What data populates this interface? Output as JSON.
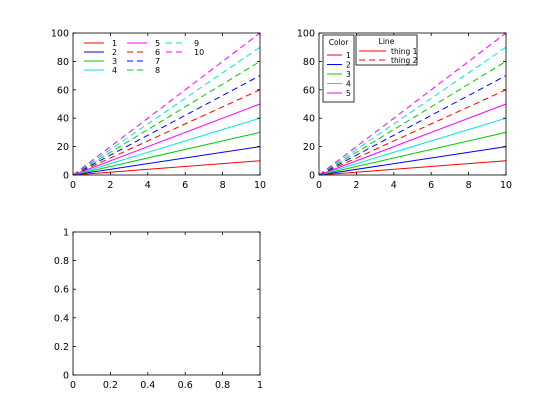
{
  "chart_data": [
    {
      "type": "line",
      "panel": "top-left",
      "xlim": [
        0,
        10
      ],
      "ylim": [
        0,
        100
      ],
      "xticks": [
        0,
        2,
        4,
        6,
        8,
        10
      ],
      "yticks": [
        0,
        20,
        40,
        60,
        80,
        100
      ],
      "xtick_labels": [
        "0",
        "2",
        "4",
        "6",
        "8",
        "10"
      ],
      "ytick_labels": [
        "0",
        "20",
        "40",
        "60",
        "80",
        "100"
      ],
      "grid": false,
      "legend_placement": "top-left",
      "legend_columns": 3,
      "series": [
        {
          "name": "1",
          "x": [
            0,
            10
          ],
          "y": [
            0,
            10
          ],
          "color": "#ff0000",
          "dash": "solid"
        },
        {
          "name": "2",
          "x": [
            0,
            10
          ],
          "y": [
            0,
            20
          ],
          "color": "#0000ff",
          "dash": "solid"
        },
        {
          "name": "3",
          "x": [
            0,
            10
          ],
          "y": [
            0,
            30
          ],
          "color": "#00cc00",
          "dash": "solid"
        },
        {
          "name": "4",
          "x": [
            0,
            10
          ],
          "y": [
            0,
            40
          ],
          "color": "#00e5e5",
          "dash": "solid"
        },
        {
          "name": "5",
          "x": [
            0,
            10
          ],
          "y": [
            0,
            50
          ],
          "color": "#ff00ff",
          "dash": "solid"
        },
        {
          "name": "6",
          "x": [
            0,
            10
          ],
          "y": [
            0,
            60
          ],
          "color": "#ff0000",
          "dash": "dashed"
        },
        {
          "name": "7",
          "x": [
            0,
            10
          ],
          "y": [
            0,
            70
          ],
          "color": "#0000ff",
          "dash": "dashed"
        },
        {
          "name": "8",
          "x": [
            0,
            10
          ],
          "y": [
            0,
            80
          ],
          "color": "#00cc00",
          "dash": "dashed"
        },
        {
          "name": "9",
          "x": [
            0,
            10
          ],
          "y": [
            0,
            90
          ],
          "color": "#00e5e5",
          "dash": "dashed"
        },
        {
          "name": "10",
          "x": [
            0,
            10
          ],
          "y": [
            0,
            100
          ],
          "color": "#ff00ff",
          "dash": "dashed"
        }
      ]
    },
    {
      "type": "line",
      "panel": "top-right",
      "xlim": [
        0,
        10
      ],
      "ylim": [
        0,
        100
      ],
      "xticks": [
        0,
        2,
        4,
        6,
        8,
        10
      ],
      "yticks": [
        0,
        20,
        40,
        60,
        80,
        100
      ],
      "xtick_labels": [
        "0",
        "2",
        "4",
        "6",
        "8",
        "10"
      ],
      "ytick_labels": [
        "0",
        "20",
        "40",
        "60",
        "80",
        "100"
      ],
      "grid": false,
      "series": [
        {
          "x": [
            0,
            10
          ],
          "y": [
            0,
            10
          ],
          "color": "#ff0000",
          "dash": "solid"
        },
        {
          "x": [
            0,
            10
          ],
          "y": [
            0,
            20
          ],
          "color": "#0000ff",
          "dash": "solid"
        },
        {
          "x": [
            0,
            10
          ],
          "y": [
            0,
            30
          ],
          "color": "#00cc00",
          "dash": "solid"
        },
        {
          "x": [
            0,
            10
          ],
          "y": [
            0,
            40
          ],
          "color": "#00e5e5",
          "dash": "solid"
        },
        {
          "x": [
            0,
            10
          ],
          "y": [
            0,
            50
          ],
          "color": "#ff00ff",
          "dash": "solid"
        },
        {
          "x": [
            0,
            10
          ],
          "y": [
            0,
            60
          ],
          "color": "#ff0000",
          "dash": "dashed"
        },
        {
          "x": [
            0,
            10
          ],
          "y": [
            0,
            70
          ],
          "color": "#0000ff",
          "dash": "dashed"
        },
        {
          "x": [
            0,
            10
          ],
          "y": [
            0,
            80
          ],
          "color": "#00cc00",
          "dash": "dashed"
        },
        {
          "x": [
            0,
            10
          ],
          "y": [
            0,
            90
          ],
          "color": "#00e5e5",
          "dash": "dashed"
        },
        {
          "x": [
            0,
            10
          ],
          "y": [
            0,
            100
          ],
          "color": "#ff00ff",
          "dash": "dashed"
        }
      ],
      "legends": [
        {
          "title": "Color",
          "placement": "top-left",
          "entries": [
            {
              "label": "1",
              "color": "#ff0000",
              "dash": "solid"
            },
            {
              "label": "2",
              "color": "#0000ff",
              "dash": "solid"
            },
            {
              "label": "3",
              "color": "#00cc00",
              "dash": "solid"
            },
            {
              "label": "4",
              "color": "#00e5e5",
              "dash": "solid"
            },
            {
              "label": "5",
              "color": "#ff00ff",
              "dash": "solid"
            }
          ]
        },
        {
          "title": "Line",
          "placement": "top-left",
          "entries": [
            {
              "label": "thing 1",
              "color": "#ff0000",
              "dash": "solid"
            },
            {
              "label": "thing 2",
              "color": "#ff0000",
              "dash": "dashed"
            }
          ]
        }
      ]
    },
    {
      "type": "line",
      "panel": "bottom-left",
      "xlim": [
        0,
        1
      ],
      "ylim": [
        0,
        1
      ],
      "xticks": [
        0,
        0.2,
        0.4,
        0.6,
        0.8,
        1
      ],
      "yticks": [
        0,
        0.2,
        0.4,
        0.6,
        0.8,
        1
      ],
      "xtick_labels": [
        "0",
        "0.2",
        "0.4",
        "0.6",
        "0.8",
        "1"
      ],
      "ytick_labels": [
        "0",
        "0.2",
        "0.4",
        "0.6",
        "0.8",
        "1"
      ],
      "grid": false,
      "series": []
    }
  ]
}
